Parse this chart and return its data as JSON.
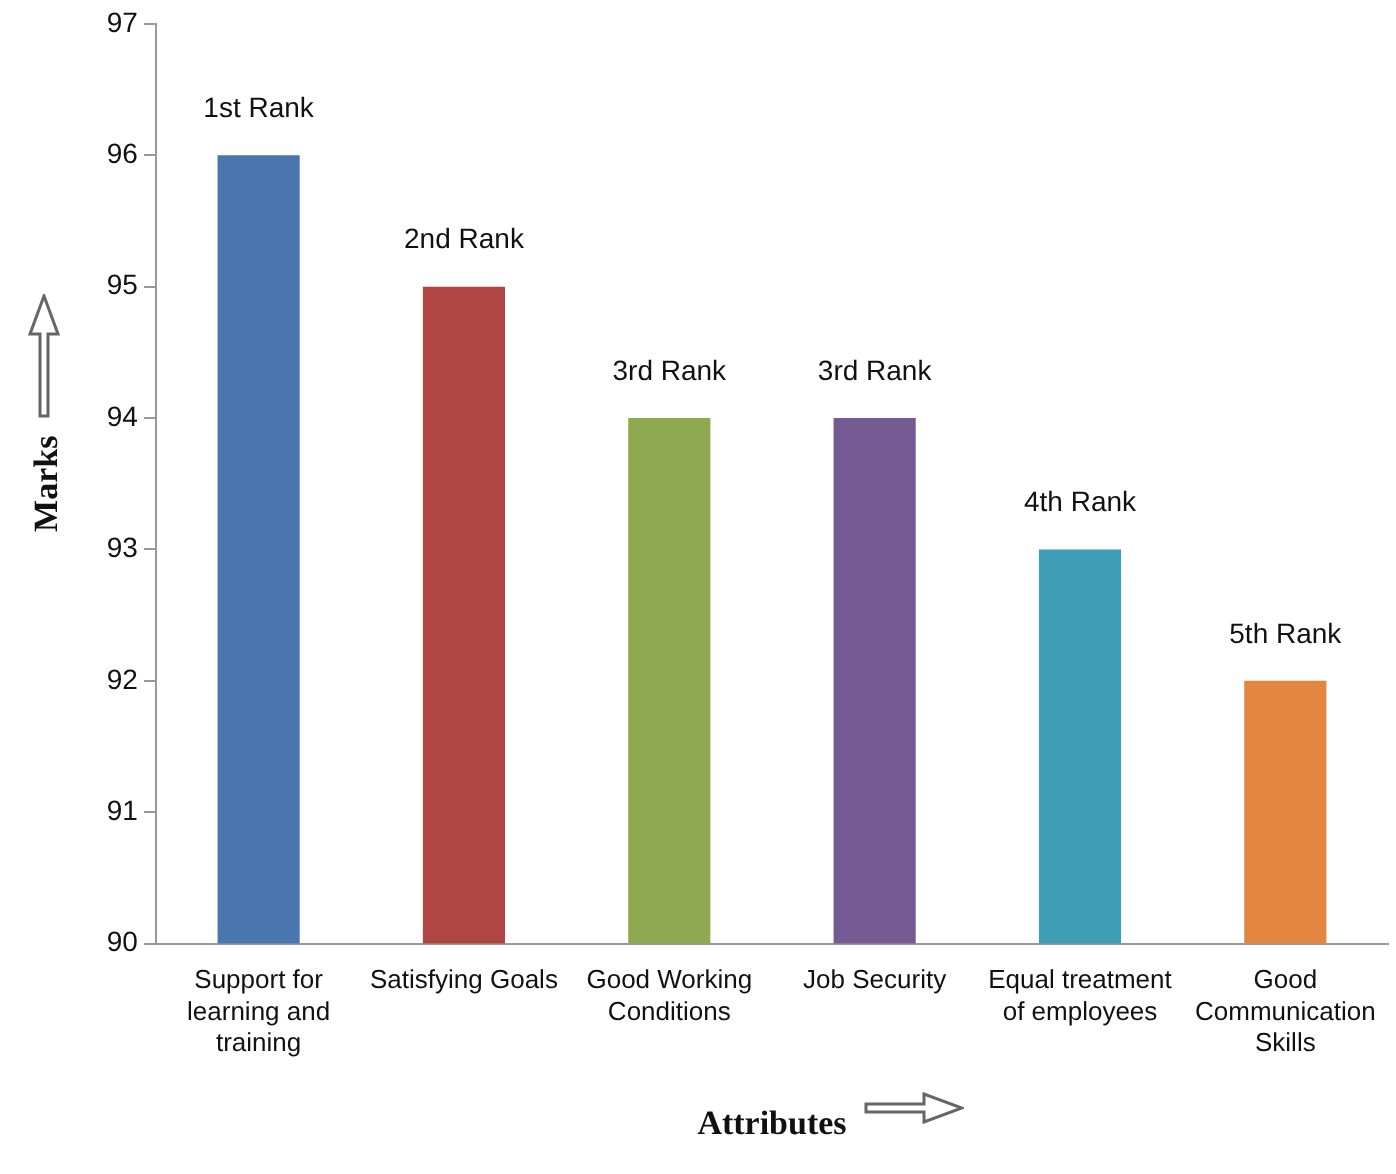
{
  "chart_data": {
    "type": "bar",
    "xlabel": "Attributes",
    "ylabel": "Marks",
    "categories": [
      "Support for learning and training",
      "Satisfying Goals",
      "Good Working Conditions",
      "Job Security",
      "Equal treatment of employees",
      "Good Communication Skills"
    ],
    "values": [
      96,
      95,
      94,
      94,
      93,
      92
    ],
    "colors": [
      "#4a76b0",
      "#b04644",
      "#8ea94f",
      "#765a94",
      "#3f9db5",
      "#e3863f"
    ],
    "annotations": [
      {
        "text": "1st Rank",
        "x": "Support for learning and training",
        "y": 96
      },
      {
        "text": "2nd Rank",
        "x": "Satisfying Goals",
        "y": 95
      },
      {
        "text": "3rd Rank",
        "x": "Good Working Conditions",
        "y": 94
      },
      {
        "text": "3rd Rank",
        "x": "Job Security",
        "y": 94
      },
      {
        "text": "4th Rank",
        "x": "Equal treatment of employees",
        "y": 93
      },
      {
        "text": "5th Rank",
        "x": "Good Communication Skills",
        "y": 92
      }
    ],
    "ylim": [
      90,
      97
    ],
    "yticks": [
      90,
      91,
      92,
      93,
      94,
      95,
      96,
      97
    ],
    "grid": false,
    "legend": false
  }
}
